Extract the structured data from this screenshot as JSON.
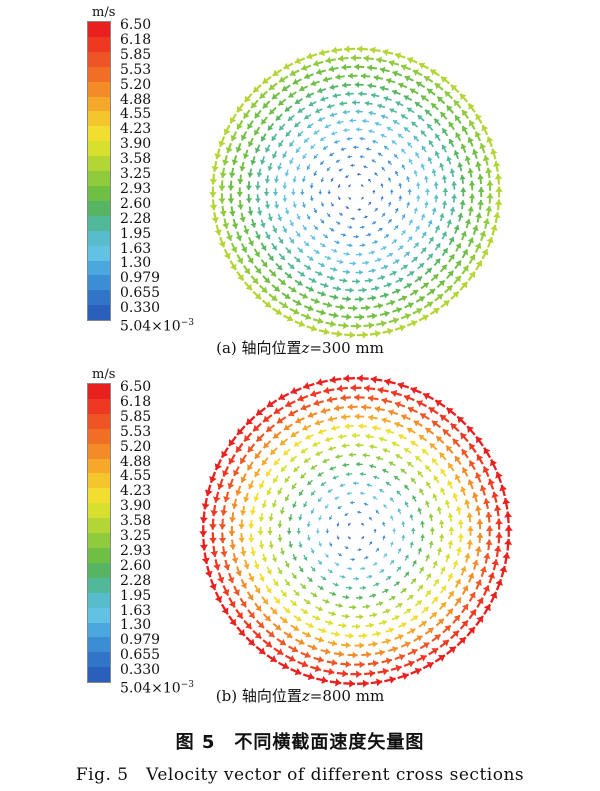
{
  "legend": {
    "unit": "m/s",
    "ticks": [
      "6.50",
      "6.18",
      "5.85",
      "5.53",
      "5.20",
      "4.88",
      "4.55",
      "4.23",
      "3.90",
      "3.58",
      "3.25",
      "2.93",
      "2.60",
      "2.28",
      "1.95",
      "1.63",
      "1.30",
      "0.979",
      "0.655",
      "0.330"
    ],
    "min_label_mantissa": "5.04×10",
    "min_label_exponent": "−3",
    "colors": [
      "#e8201e",
      "#ee3822",
      "#ee5424",
      "#f06e26",
      "#f38b26",
      "#f5a829",
      "#f4c52c",
      "#f2de30",
      "#d7e02e",
      "#b3d636",
      "#8fcb3d",
      "#6ebf44",
      "#55b562",
      "#52b89a",
      "#58bccd",
      "#62c2e4",
      "#4aa8de",
      "#3c8ed4",
      "#3075c8",
      "#2a5fbc"
    ]
  },
  "panels": [
    {
      "caption_prefix": "(a) 轴向位置",
      "caption_var": "z",
      "caption_value": "=300 mm",
      "max_velocity": 3.4
    },
    {
      "caption_prefix": "(b) 轴向位置",
      "caption_var": "z",
      "caption_value": "=800 mm",
      "max_velocity": 6.5
    }
  ],
  "figure": {
    "title_zh": "图 5　不同横截面速度矢量图",
    "title_en": "Fig. 5　Velocity vector of different cross sections"
  }
}
